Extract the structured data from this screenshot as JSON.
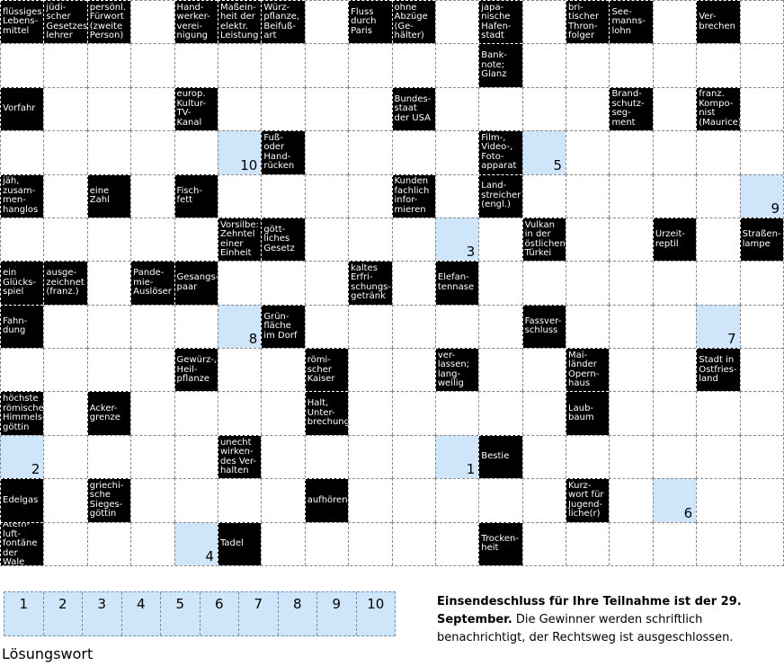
{
  "grid": {
    "rows": [
      [
        "flüssiges\nLebens-\nmittel",
        "jüdi-\nscher\nGesetzes-\nlehrer",
        "persönl.\nFürwort\n(zweite\nPerson)",
        null,
        "Hand-\nwerker-\nverei-\nnigung",
        "Maßein-\nheit der\nelektr.\nLeistung",
        "Würz-\npflanze,\nBeifuß-\nart",
        null,
        "Fluss\ndurch\nParis",
        "ohne\nAbzüge\n(Ge-\nhälter)",
        null,
        "japa-\nnische\nHafen-\nstadt",
        null,
        "bri-\ntischer\nThron-\nfolger",
        "See-\nmanns-\nlohn",
        null,
        "Ver-\nbrechen",
        null
      ],
      [
        null,
        null,
        null,
        null,
        null,
        null,
        null,
        null,
        null,
        null,
        null,
        "Bank-\nnote;\nGlanz",
        null,
        null,
        null,
        null,
        null,
        null
      ],
      [
        "Vorfahr",
        null,
        null,
        null,
        "europ.\nKultur-\nTV-\nKanal",
        null,
        null,
        null,
        null,
        "Bundes-\nstaat\nder USA",
        null,
        null,
        null,
        null,
        "Brand-\nschutz-\nseg-\nment",
        null,
        "franz.\nKompo-\nnist\n(Maurice)",
        null
      ],
      [
        null,
        null,
        null,
        null,
        null,
        10,
        "Fuß-\noder\nHand-\nrücken",
        null,
        null,
        null,
        null,
        "Film-,\nVideo-,\nFoto-\napparat",
        5,
        null,
        null,
        null,
        null,
        null
      ],
      [
        "jäh,\nzusam-\nmen-\nhanglos",
        null,
        "eine\nZahl",
        null,
        "Fisch-\nfett",
        null,
        null,
        null,
        null,
        "Kunden\nfachlich\ninfor-\nmieren",
        null,
        "Land-\nstreicher\n(engl.)",
        null,
        null,
        null,
        null,
        null,
        9
      ],
      [
        null,
        null,
        null,
        null,
        null,
        "Vorsilbe:\nZehntel\neiner\nEinheit",
        "gött-\nliches\nGesetz",
        null,
        null,
        null,
        3,
        null,
        "Vulkan\nin der\nöstlichen\nTürkei",
        null,
        null,
        "Urzeit-\nreptil",
        null,
        "Straßen-\nlampe"
      ],
      [
        "ein\nGlücks-\nspiel",
        "ausge-\nzeichnet\n(franz.)",
        null,
        "Pande-\nmie-\nAuslöser",
        "Gesangs-\npaar",
        null,
        null,
        null,
        "kaltes\nErfri-\nschungs-\ngetränk",
        null,
        "Elefan-\ntennase",
        null,
        null,
        null,
        null,
        null,
        null,
        null
      ],
      [
        "Fahn-\ndung",
        null,
        null,
        null,
        null,
        8,
        "Grün-\nfläche\nim Dorf",
        null,
        null,
        null,
        null,
        null,
        "Fassver-\nschluss",
        null,
        null,
        null,
        7,
        null
      ],
      [
        null,
        null,
        null,
        null,
        "Gewürz-,\nHeil-\npflanze",
        null,
        null,
        "römi-\nscher\nKaiser",
        null,
        null,
        "ver-\nlassen;\nlang-\nweilig",
        null,
        null,
        "Mai-\nländer\nOpern-\nhaus",
        null,
        null,
        "Stadt in\nOstfries-\nland",
        null
      ],
      [
        "höchste\nrömische\nHimmels-\ngöttin",
        null,
        "Acker-\ngrenze",
        null,
        null,
        null,
        null,
        "Halt,\nUnter-\nbrechung",
        null,
        null,
        null,
        null,
        null,
        "Laub-\nbaum",
        null,
        null,
        null,
        null
      ],
      [
        2,
        null,
        null,
        null,
        null,
        "unecht\nwirken-\ndes Ver-\nhalten",
        null,
        null,
        null,
        null,
        1,
        "Bestie",
        null,
        null,
        null,
        null,
        null,
        null
      ],
      [
        "Edelgas",
        null,
        "griechi-\nsche\nSieges-\ngöttin",
        null,
        null,
        null,
        null,
        "aufhören",
        null,
        null,
        null,
        null,
        null,
        "Kurz-\nwort für\nJugend-\nliche(r)",
        null,
        6,
        null,
        null
      ],
      [
        "Atem-\nluft-\nfontäne\nder Wale",
        null,
        null,
        null,
        4,
        "Tadel",
        null,
        null,
        null,
        null,
        null,
        "Trocken-\nheit",
        null,
        null,
        null,
        null,
        null,
        null
      ]
    ]
  },
  "solution": {
    "boxes": [
      1,
      2,
      3,
      4,
      5,
      6,
      7,
      8,
      9,
      10
    ],
    "label": "Lösungswort"
  },
  "notice": {
    "deadline": "Einsendeschluss für Ihre Teilnahme ist der 29. September.",
    "terms": "Die Gewinner werden schriftlich benachrichtigt, der Rechtsweg ist ausgeschlossen."
  }
}
